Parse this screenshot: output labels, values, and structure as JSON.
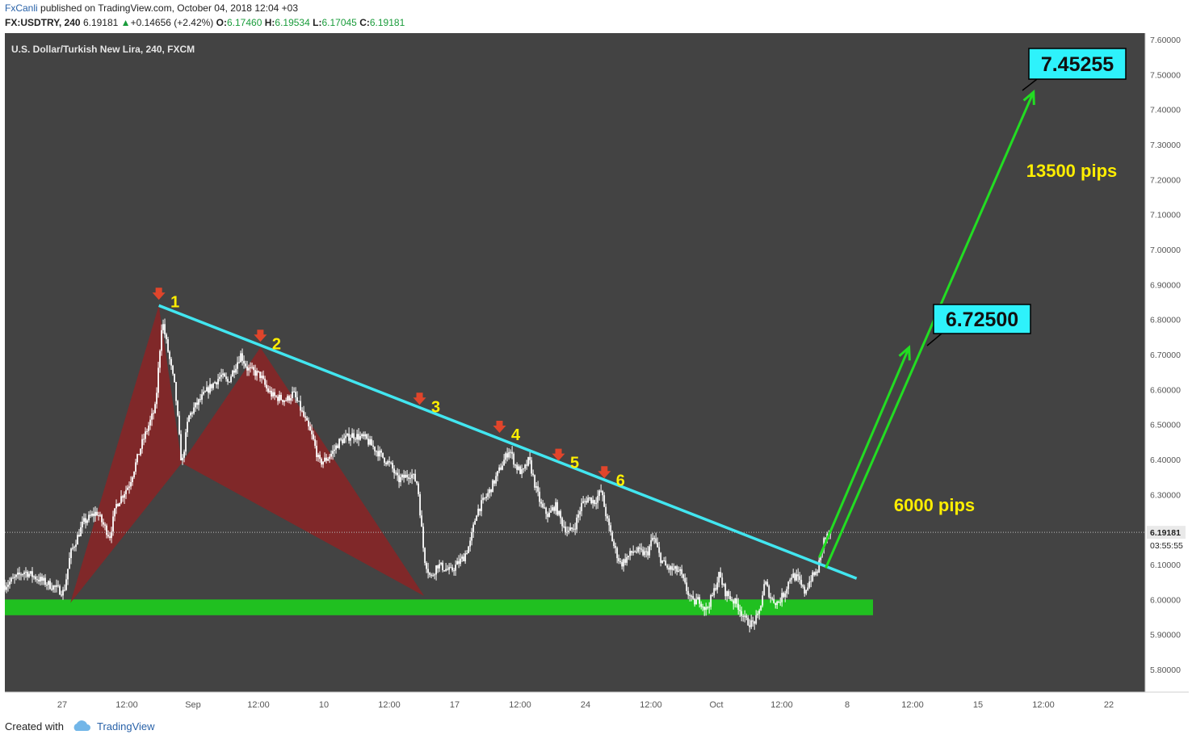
{
  "header": {
    "author": "FxCanli",
    "published_text": "published on TradingView.com, October 04, 2018 12:04 +03",
    "symbol": "FX:USDTRY, 240",
    "last": "6.19181",
    "up_arrow": "▲",
    "change": "+0.14656 (+2.42%)",
    "open_label": "O:",
    "open": "6.17460",
    "high_label": "H:",
    "high": "6.19534",
    "low_label": "L:",
    "low": "6.17045",
    "close_label": "C:",
    "close": "6.19181"
  },
  "footer": {
    "created_with": "Created with",
    "brand": "TradingView"
  },
  "colors": {
    "background": "#434343",
    "candle_up": "#ffffff",
    "candle_down": "#ffffff",
    "trendline": "#42e6f0",
    "support_zone": "#20c020",
    "pattern_fill": "#8b2325",
    "arrow": "#e0452b",
    "label_yellow": "#ffee00",
    "projection": "#22dd22",
    "target_box": "#2ef2fb"
  },
  "chart_data": {
    "type": "candlestick",
    "title": "U.S. Dollar/Turkish New Lira, 240, FXCM",
    "ylim": [
      5.75,
      7.6
    ],
    "y_ticks": [
      "7.60000",
      "7.50000",
      "7.40000",
      "7.30000",
      "7.20000",
      "7.10000",
      "7.00000",
      "6.90000",
      "6.80000",
      "6.70000",
      "6.60000",
      "6.50000",
      "6.40000",
      "6.30000",
      "6.20000",
      "6.10000",
      "6.00000",
      "5.90000",
      "5.80000"
    ],
    "x_ticks": [
      "27",
      "12:00",
      "Sep",
      "12:00",
      "10",
      "12:00",
      "17",
      "12:00",
      "24",
      "12:00",
      "Oct",
      "12:00",
      "8",
      "12:00",
      "15",
      "12:00",
      "22"
    ],
    "current_price": "6.19181",
    "countdown": "03:55:55",
    "price_path": [
      [
        0,
        6.04
      ],
      [
        3,
        6.08
      ],
      [
        6,
        6.05
      ],
      [
        9,
        6.02
      ],
      [
        10,
        6.13
      ],
      [
        12,
        6.22
      ],
      [
        14,
        6.25
      ],
      [
        16,
        6.18
      ],
      [
        17,
        6.27
      ],
      [
        19,
        6.33
      ],
      [
        21,
        6.45
      ],
      [
        23,
        6.55
      ],
      [
        24,
        6.8
      ],
      [
        25,
        6.7
      ],
      [
        26,
        6.6
      ],
      [
        27,
        6.38
      ],
      [
        28,
        6.52
      ],
      [
        29,
        6.55
      ],
      [
        31,
        6.6
      ],
      [
        33,
        6.64
      ],
      [
        34,
        6.62
      ],
      [
        35,
        6.66
      ],
      [
        36,
        6.7
      ],
      [
        37,
        6.66
      ],
      [
        39,
        6.64
      ],
      [
        40,
        6.6
      ],
      [
        41,
        6.58
      ],
      [
        43,
        6.57
      ],
      [
        44,
        6.59
      ],
      [
        45,
        6.55
      ],
      [
        47,
        6.46
      ],
      [
        48,
        6.39
      ],
      [
        49,
        6.4
      ],
      [
        50,
        6.42
      ],
      [
        51,
        6.45
      ],
      [
        53,
        6.47
      ],
      [
        55,
        6.46
      ],
      [
        57,
        6.42
      ],
      [
        59,
        6.38
      ],
      [
        60,
        6.34
      ],
      [
        62,
        6.36
      ],
      [
        63,
        6.33
      ],
      [
        64,
        6.12
      ],
      [
        65,
        6.06
      ],
      [
        66,
        6.1
      ],
      [
        68,
        6.08
      ],
      [
        70,
        6.12
      ],
      [
        71,
        6.16
      ],
      [
        72,
        6.25
      ],
      [
        73,
        6.28
      ],
      [
        74,
        6.31
      ],
      [
        75,
        6.35
      ],
      [
        76,
        6.39
      ],
      [
        77,
        6.43
      ],
      [
        78,
        6.38
      ],
      [
        79,
        6.36
      ],
      [
        80,
        6.4
      ],
      [
        81,
        6.32
      ],
      [
        82,
        6.26
      ],
      [
        83,
        6.24
      ],
      [
        84,
        6.27
      ],
      [
        85,
        6.22
      ],
      [
        86,
        6.19
      ],
      [
        87,
        6.21
      ],
      [
        88,
        6.27
      ],
      [
        89,
        6.29
      ],
      [
        90,
        6.28
      ],
      [
        91,
        6.31
      ],
      [
        92,
        6.22
      ],
      [
        93,
        6.15
      ],
      [
        94,
        6.1
      ],
      [
        96,
        6.14
      ],
      [
        98,
        6.13
      ],
      [
        99,
        6.18
      ],
      [
        100,
        6.12
      ],
      [
        101,
        6.09
      ],
      [
        103,
        6.08
      ],
      [
        104,
        6.03
      ],
      [
        105,
        5.99
      ],
      [
        106,
        6.0
      ],
      [
        107,
        5.97
      ],
      [
        108,
        6.01
      ],
      [
        109,
        6.07
      ],
      [
        110,
        6.02
      ],
      [
        111,
        6.0
      ],
      [
        112,
        5.98
      ],
      [
        113,
        5.94
      ],
      [
        114,
        5.93
      ],
      [
        115,
        5.95
      ],
      [
        116,
        6.05
      ],
      [
        117,
        6.0
      ],
      [
        118,
        5.99
      ],
      [
        119,
        6.02
      ],
      [
        120,
        6.07
      ],
      [
        121,
        6.06
      ],
      [
        122,
        6.02
      ],
      [
        123,
        6.06
      ],
      [
        124,
        6.08
      ],
      [
        125,
        6.17
      ],
      [
        126,
        6.19
      ]
    ],
    "trendline": {
      "start": [
        23.5,
        6.84
      ],
      "end": [
        130,
        6.06
      ]
    },
    "support_zone": {
      "from": 5.955,
      "to": 6.0
    },
    "pattern": [
      [
        10,
        5.99
      ],
      [
        23.5,
        6.84
      ],
      [
        27,
        6.39
      ],
      [
        39,
        6.72
      ],
      [
        64,
        6.01
      ]
    ],
    "touch_points": [
      {
        "label": "1",
        "x": 23.5,
        "y": 6.84
      },
      {
        "label": "2",
        "x": 39,
        "y": 6.72
      },
      {
        "label": "3",
        "x": 63.3,
        "y": 6.54
      },
      {
        "label": "4",
        "x": 75.5,
        "y": 6.46
      },
      {
        "label": "5",
        "x": 84.5,
        "y": 6.38
      },
      {
        "label": "6",
        "x": 91.5,
        "y": 6.33
      }
    ],
    "projection_lines": [
      {
        "start": [
          124.3,
          6.12
        ],
        "end": [
          138,
          6.72
        ]
      },
      {
        "start": [
          125.3,
          6.09
        ],
        "end": [
          157,
          7.45
        ]
      }
    ],
    "targets": [
      {
        "label": "6.72500",
        "value": 6.725
      },
      {
        "label": "7.45255",
        "value": 7.45255
      }
    ],
    "annotations": [
      {
        "text": "6000 pips"
      },
      {
        "text": "13500 pips"
      }
    ]
  }
}
